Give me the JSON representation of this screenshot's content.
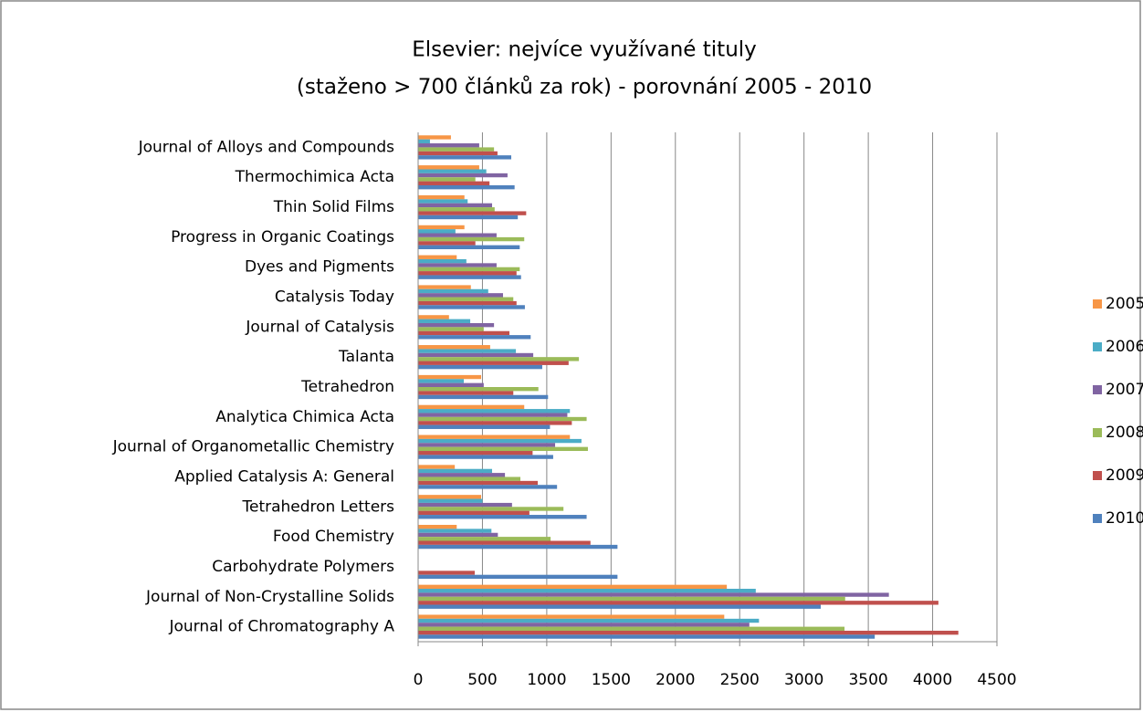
{
  "chart_data": {
    "type": "bar",
    "orientation": "horizontal",
    "title": [
      "Elsevier: nejvíce využívané tituly",
      "(staženo > 700 článků za rok) - porovnání 2005 - 2010"
    ],
    "categories": [
      "Journal of Alloys and Compounds",
      "Thermochimica Acta",
      "Thin Solid Films",
      "Progress in Organic Coatings",
      "Dyes and Pigments",
      "Catalysis Today",
      "Journal of Catalysis",
      "Talanta",
      "Tetrahedron",
      "Analytica Chimica Acta",
      "Journal of Organometallic Chemistry",
      "Applied Catalysis A: General",
      "Tetrahedron Letters",
      "Food Chemistry",
      "Carbohydrate Polymers",
      "Journal of Non-Crystalline Solids",
      "Journal of Chromatography A"
    ],
    "series": [
      {
        "name": "2005",
        "color": "#f79646",
        "values": [
          255,
          475,
          360,
          360,
          300,
          410,
          240,
          560,
          490,
          825,
          1180,
          285,
          490,
          300,
          null,
          2400,
          2380
        ]
      },
      {
        "name": "2006",
        "color": "#4bacc6",
        "values": [
          92,
          530,
          385,
          290,
          375,
          545,
          405,
          760,
          355,
          1180,
          1270,
          575,
          500,
          570,
          null,
          2625,
          2650
        ]
      },
      {
        "name": "2007",
        "color": "#8064a2",
        "values": [
          475,
          695,
          575,
          610,
          610,
          660,
          590,
          895,
          510,
          1160,
          1065,
          675,
          730,
          620,
          null,
          3660,
          2575
        ]
      },
      {
        "name": "2008",
        "color": "#9bbb59",
        "values": [
          590,
          445,
          595,
          825,
          790,
          740,
          510,
          1250,
          935,
          1310,
          1320,
          795,
          1130,
          1030,
          null,
          3320,
          3315
        ]
      },
      {
        "name": "2009",
        "color": "#c0504d",
        "values": [
          617,
          555,
          840,
          445,
          765,
          765,
          710,
          1170,
          740,
          1195,
          890,
          930,
          865,
          1340,
          440,
          4045,
          4200
        ]
      },
      {
        "name": "2010",
        "color": "#4f81bd",
        "values": [
          724,
          750,
          775,
          790,
          800,
          830,
          875,
          965,
          1010,
          1025,
          1050,
          1080,
          1310,
          1550,
          1550,
          3130,
          3550
        ]
      }
    ],
    "xlim": [
      0,
      4500
    ],
    "xticks": [
      0,
      500,
      1000,
      1500,
      2000,
      2500,
      3000,
      3500,
      4000,
      4500
    ],
    "grid": true,
    "legend": "right"
  }
}
